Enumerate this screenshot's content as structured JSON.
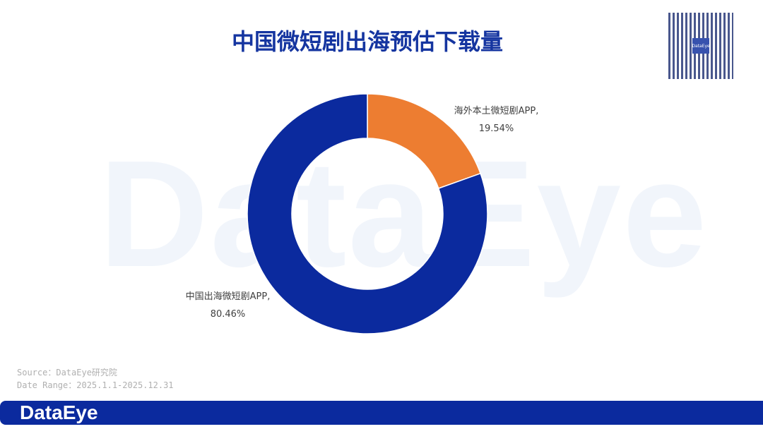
{
  "watermark": "DataEye",
  "chart_data": {
    "type": "pie",
    "donut": true,
    "title": "中国微短剧出海预估下载量",
    "slices": [
      {
        "label": "海外本土微短剧APP",
        "value": 19.54,
        "display": "19.54%",
        "color": "#ed7d31"
      },
      {
        "label": "中国出海微短剧APP",
        "value": 80.46,
        "display": "80.46%",
        "color": "#0b2a9e"
      }
    ]
  },
  "source": "Source：DataEye研究院",
  "date_range": "Date Range：2025.1.1-2025.12.31",
  "footer_logo": "DataEye",
  "qr_label": "DataEye"
}
